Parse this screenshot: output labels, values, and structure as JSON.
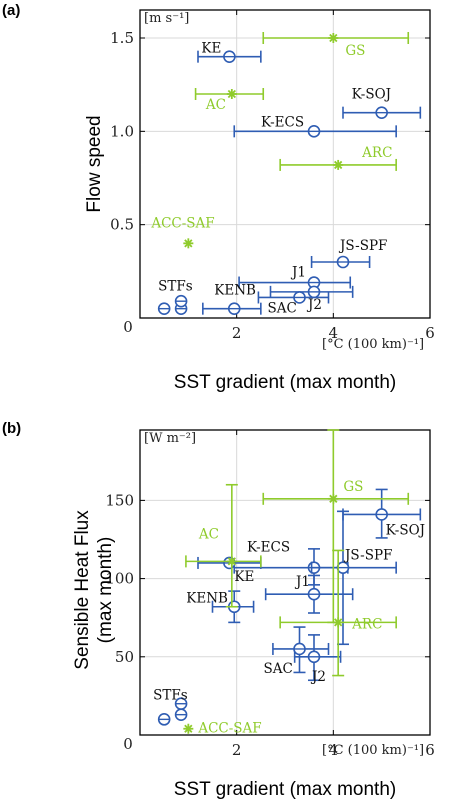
{
  "colors": {
    "blue": "#2f5db3",
    "green": "#8fcb2c",
    "grid": "#d9d9d9",
    "axis": "#000000"
  },
  "chart_data": [
    {
      "type": "scatter",
      "panel_label": "(a)",
      "xlabel": "SST gradient (max month)",
      "xunit": "[°C (100 km)⁻¹]",
      "ylabel": "Flow speed",
      "yunit": "[m s⁻¹]",
      "xlim": [
        0,
        6
      ],
      "ylim": [
        0,
        1.65
      ],
      "xticks": [
        0,
        2,
        4,
        6
      ],
      "xtick_labels": [
        "0",
        "2",
        "4",
        "6"
      ],
      "yticks": [
        0.5,
        1.0,
        1.5
      ],
      "ytick_labels": [
        "0.5",
        "1.0",
        "1.5"
      ],
      "zero_label": "0",
      "grid": true,
      "series": [
        {
          "group": "blue",
          "marker": "circle-plus",
          "points": [
            {
              "label": "KE",
              "x": 1.85,
              "y": 1.4,
              "xerr": [
                1.2,
                2.5
              ]
            },
            {
              "label": "K-SOJ",
              "x": 5.0,
              "y": 1.1,
              "xerr": [
                4.2,
                5.8
              ]
            },
            {
              "label": "K-ECS",
              "x": 3.6,
              "y": 1.0,
              "xerr": [
                1.95,
                5.3
              ]
            },
            {
              "label": "JS-SPF",
              "x": 4.2,
              "y": 0.3,
              "xerr": [
                3.55,
                4.75
              ]
            },
            {
              "label": "J1",
              "x": 3.6,
              "y": 0.19,
              "xerr": [
                2.05,
                4.35
              ]
            },
            {
              "label": "J2",
              "x": 3.6,
              "y": 0.14,
              "xerr": [
                2.7,
                4.4
              ]
            },
            {
              "label": "SAC",
              "x": 3.3,
              "y": 0.11,
              "xerr": [
                2.45,
                3.9
              ]
            },
            {
              "label": "KENB",
              "x": 1.95,
              "y": 0.05,
              "xerr": [
                1.3,
                2.5
              ]
            },
            {
              "label": "STFs",
              "x": 0.5,
              "y": 0.05
            },
            {
              "label": "",
              "x": 0.85,
              "y": 0.05
            },
            {
              "label": "",
              "x": 0.85,
              "y": 0.09
            }
          ]
        },
        {
          "group": "green",
          "marker": "asterisk",
          "points": [
            {
              "label": "GS",
              "x": 4.0,
              "y": 1.5,
              "xerr": [
                2.55,
                5.55
              ]
            },
            {
              "label": "AC",
              "x": 1.9,
              "y": 1.2,
              "xerr": [
                1.15,
                2.55
              ]
            },
            {
              "label": "ARC",
              "x": 4.1,
              "y": 0.82,
              "xerr": [
                2.9,
                5.3
              ]
            },
            {
              "label": "ACC-SAF",
              "x": 1.0,
              "y": 0.4
            }
          ]
        }
      ]
    },
    {
      "type": "scatter",
      "panel_label": "(b)",
      "xlabel": "SST gradient (max month)",
      "xunit": "[°C (100 km)⁻¹]",
      "ylabel": "Sensible Heat Flux (max month)",
      "yunit": "[W m⁻²]",
      "xlim": [
        0,
        6
      ],
      "ylim": [
        0,
        195
      ],
      "xticks": [
        0,
        2,
        4,
        6
      ],
      "xtick_labels": [
        "0",
        "2",
        "4",
        "6"
      ],
      "yticks": [
        50,
        100,
        150
      ],
      "ytick_labels": [
        "50",
        "100",
        "150"
      ],
      "zero_label": "0",
      "grid": true,
      "series": [
        {
          "group": "blue",
          "marker": "circle-plus",
          "points": [
            {
              "label": "K-SOJ",
              "x": 5.0,
              "y": 141,
              "xerr": [
                4.2,
                5.8
              ],
              "yerr": [
                126,
                157
              ]
            },
            {
              "label": "K-ECS",
              "x": 3.6,
              "y": 107,
              "xerr": [
                1.95,
                4.3
              ],
              "yerr": [
                96,
                119
              ]
            },
            {
              "label": "JS-SPF",
              "x": 4.2,
              "y": 107,
              "xerr": [
                3.55,
                5.3
              ],
              "yerr": [
                58,
                143
              ]
            },
            {
              "label": "KE",
              "x": 1.85,
              "y": 110,
              "xerr": [
                1.2,
                2.5
              ]
            },
            {
              "label": "KENB",
              "x": 1.95,
              "y": 82,
              "xerr": [
                1.5,
                2.35
              ],
              "yerr": [
                72,
                92
              ]
            },
            {
              "label": "J1",
              "x": 3.6,
              "y": 90,
              "xerr": [
                2.6,
                4.4
              ],
              "yerr": [
                78,
                102
              ]
            },
            {
              "label": "SAC",
              "x": 3.3,
              "y": 55,
              "xerr": [
                2.75,
                3.9
              ],
              "yerr": [
                40,
                69
              ]
            },
            {
              "label": "J2",
              "x": 3.6,
              "y": 50,
              "xerr": [
                3.2,
                4.15
              ],
              "yerr": [
                35,
                64
              ]
            },
            {
              "label": "STFs",
              "x": 0.85,
              "y": 20
            },
            {
              "label": "",
              "x": 0.85,
              "y": 13
            },
            {
              "label": "",
              "x": 0.5,
              "y": 10
            }
          ]
        },
        {
          "group": "green",
          "marker": "asterisk",
          "points": [
            {
              "label": "GS",
              "x": 4.0,
              "y": 151,
              "xerr": [
                2.55,
                5.55
              ],
              "yerr": [
                72,
                195
              ]
            },
            {
              "label": "AC",
              "x": 1.9,
              "y": 111,
              "xerr": [
                0.95,
                2.5
              ],
              "yerr": [
                82,
                160
              ]
            },
            {
              "label": "ARC",
              "x": 4.1,
              "y": 72,
              "xerr": [
                2.9,
                5.3
              ],
              "yerr": [
                38,
                118
              ]
            },
            {
              "label": "ACC-SAF",
              "x": 1.0,
              "y": 4
            }
          ]
        }
      ]
    }
  ]
}
